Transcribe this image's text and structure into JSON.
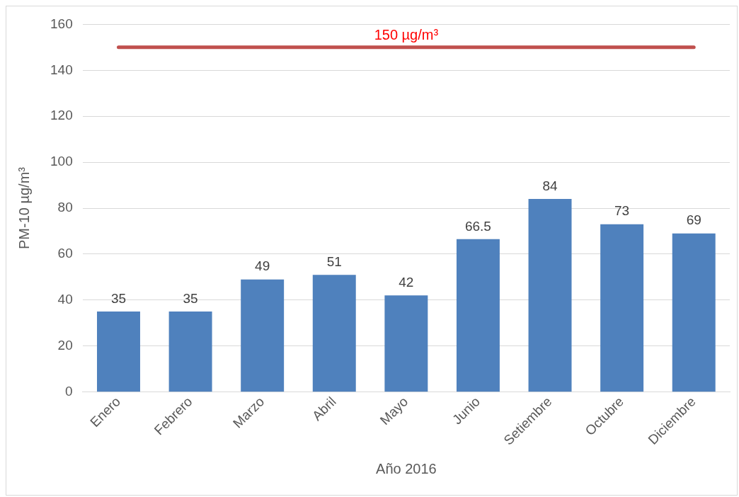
{
  "chart_data": {
    "type": "bar",
    "xlabel": "Año 2016",
    "ylabel": "PM-10 µg/m³",
    "categories": [
      "Enero",
      "Febrero",
      "Marzo",
      "Abril",
      "Mayo",
      "Junio",
      "Setiembre",
      "Octubre",
      "Diciembre"
    ],
    "values": [
      35,
      35,
      49,
      51,
      42,
      66.5,
      84,
      73,
      69
    ],
    "color": "#4f81bd",
    "ylim": [
      0,
      160
    ],
    "yticks": [
      0,
      20,
      40,
      60,
      80,
      100,
      120,
      140,
      160
    ],
    "grid": "y",
    "legend": false,
    "data_labels": true,
    "ref_lines": [
      {
        "axis": "y",
        "value": 150,
        "label": "150 µg/m³",
        "color": "#c0504d"
      }
    ]
  }
}
